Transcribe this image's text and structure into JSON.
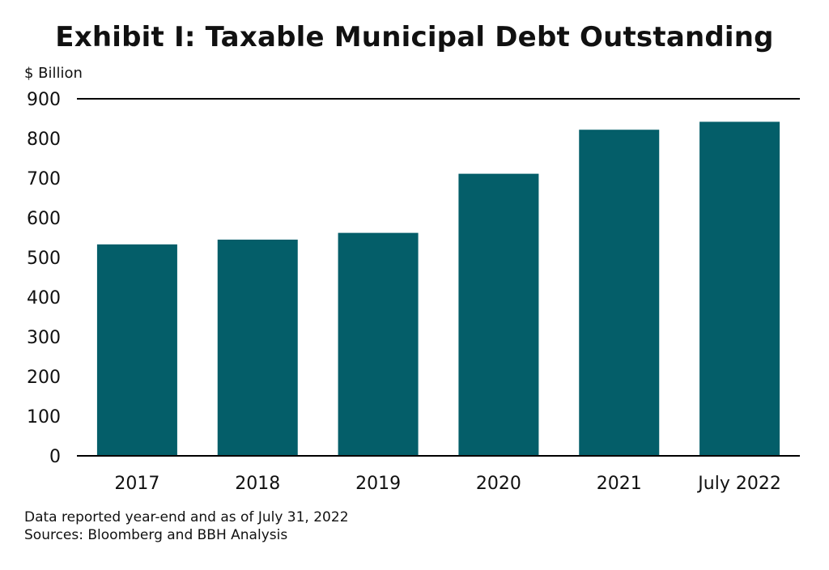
{
  "chart_data": {
    "type": "bar",
    "title": "Exhibit I: Taxable Municipal Debt Outstanding",
    "ylabel": "$ Billion",
    "xlabel": "",
    "categories": [
      "2017",
      "2018",
      "2019",
      "2020",
      "2021",
      "July 2022"
    ],
    "values": [
      533,
      545,
      562,
      711,
      822,
      842
    ],
    "ylim": [
      0,
      900
    ],
    "yticks": [
      0,
      100,
      200,
      300,
      400,
      500,
      600,
      700,
      800,
      900
    ],
    "grid": false,
    "bar_color": "#045E69"
  },
  "footnotes": {
    "note": "Data reported year-end and as of July 31, 2022",
    "sources": "Sources: Bloomberg and BBH Analysis"
  }
}
